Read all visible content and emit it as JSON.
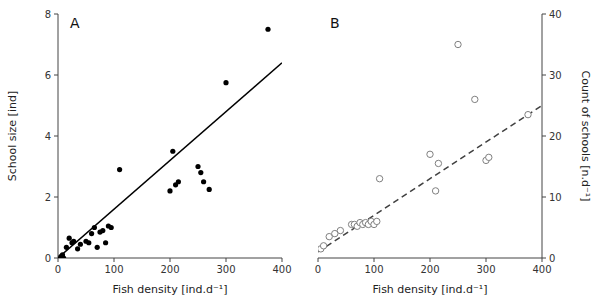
{
  "chart_data": [
    {
      "type": "scatter",
      "x_label": "Fish density [ind.d⁻¹]",
      "y_label": "School size [ind]",
      "annotations": [
        "A"
      ],
      "xlim": [
        0,
        400
      ],
      "ylim": [
        0,
        8
      ],
      "xticks": [
        0,
        100,
        200,
        300,
        400
      ],
      "yticks": [
        0,
        2,
        4,
        6,
        8
      ],
      "grid": false,
      "series": [
        {
          "type": "scatter",
          "color": "#000000",
          "marker": "circle",
          "x": [
            5,
            8,
            10,
            15,
            20,
            25,
            28,
            35,
            40,
            50,
            55,
            60,
            65,
            70,
            75,
            80,
            85,
            90,
            95,
            110,
            200,
            205,
            210,
            215,
            250,
            255,
            260,
            270,
            300,
            375
          ],
          "values": [
            0.05,
            0.1,
            0.0,
            0.35,
            0.65,
            0.5,
            0.55,
            0.3,
            0.45,
            0.55,
            0.5,
            0.8,
            1.0,
            0.35,
            0.85,
            0.9,
            0.5,
            1.05,
            1.0,
            2.9,
            2.2,
            3.5,
            2.4,
            2.5,
            3.0,
            2.8,
            2.5,
            2.25,
            5.75,
            7.5
          ]
        },
        {
          "type": "line",
          "color": "#000000",
          "line_style": "solid",
          "x": [
            0,
            400
          ],
          "values": [
            0.0,
            6.4
          ]
        }
      ]
    },
    {
      "type": "scatter",
      "x_label": "Fish density [ind.d⁻¹]",
      "y_label": "Count of schools [n.d⁻¹]",
      "annotations": [
        "B"
      ],
      "xlim": [
        0,
        400
      ],
      "ylim": [
        0,
        40
      ],
      "xticks": [
        0,
        100,
        200,
        300,
        400
      ],
      "yticks": [
        0,
        10,
        20,
        30,
        40
      ],
      "grid": false,
      "series": [
        {
          "type": "scatter",
          "color": "#808080",
          "marker": "open-circle",
          "x": [
            5,
            10,
            20,
            30,
            40,
            60,
            65,
            70,
            75,
            80,
            85,
            90,
            95,
            100,
            105,
            110,
            200,
            210,
            215,
            250,
            280,
            300,
            305,
            375
          ],
          "values": [
            1.5,
            2.0,
            3.5,
            4.0,
            4.5,
            5.5,
            5.5,
            5.2,
            5.8,
            5.5,
            5.8,
            5.5,
            6.0,
            5.5,
            6.0,
            13.0,
            17.0,
            11.0,
            15.5,
            35.0,
            26.0,
            16.0,
            16.5,
            23.5
          ]
        },
        {
          "type": "line",
          "color": "#404040",
          "line_style": "dashed",
          "x": [
            0,
            400
          ],
          "values": [
            1.0,
            25.0
          ]
        }
      ]
    }
  ]
}
